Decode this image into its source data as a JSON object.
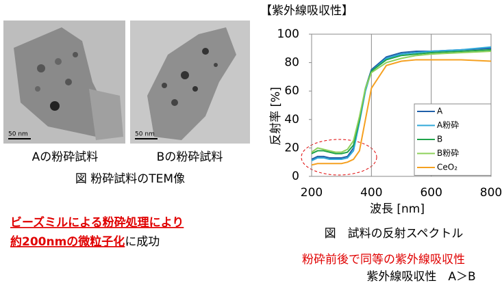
{
  "images": [
    {
      "scale": "50 nm",
      "label": "Aの粉砕試料"
    },
    {
      "scale": "50 nm",
      "label": "Bの粉砕試料"
    }
  ],
  "images_caption": "図 粉砕試料のTEM像",
  "highlight": {
    "line1": "ビーズミルによる粉砕処理により",
    "line2_red": "約200nmの微粒子化",
    "line2_rest": "に成功"
  },
  "conclusions": [
    "粉砕前後で同等の紫外線吸収性",
    "紫外線吸収性　A＞B"
  ],
  "chart_data": {
    "type": "line",
    "title": "【紫外線吸収性】",
    "caption": "図　試料の反射スペクトル",
    "x_label": "波長 [nm]",
    "y_label": "反射率 [%]",
    "x": [
      200,
      220,
      240,
      260,
      280,
      300,
      320,
      340,
      360,
      380,
      400,
      450,
      500,
      550,
      600,
      700,
      800
    ],
    "series": [
      {
        "name": "A",
        "color": "#1f5fa8",
        "values": [
          12,
          14,
          14,
          13,
          13,
          13,
          14,
          20,
          40,
          62,
          75,
          84,
          87,
          88,
          88,
          89,
          90
        ]
      },
      {
        "name": "A粉砕",
        "color": "#2fa8d8",
        "values": [
          11,
          13,
          13,
          12,
          12,
          12,
          13,
          18,
          38,
          60,
          74,
          83,
          86,
          87,
          88,
          89,
          91
        ]
      },
      {
        "name": "B",
        "color": "#1ea34a",
        "values": [
          16,
          18,
          18,
          17,
          16,
          16,
          17,
          22,
          40,
          62,
          74,
          82,
          85,
          86,
          87,
          88,
          89
        ]
      },
      {
        "name": "B粉砕",
        "color": "#8cd05a",
        "values": [
          17,
          20,
          19,
          18,
          17,
          17,
          19,
          25,
          42,
          62,
          73,
          80,
          83,
          85,
          86,
          87,
          88
        ]
      },
      {
        "name": "CeO₂",
        "color": "#f5a020",
        "values": [
          8,
          9,
          9,
          9,
          9,
          9,
          10,
          12,
          18,
          40,
          62,
          78,
          81,
          82,
          82,
          82,
          81
        ]
      }
    ],
    "xlim": [
      200,
      800
    ],
    "ylim": [
      0,
      100
    ],
    "xticks": [
      200,
      400,
      600,
      800
    ],
    "yticks": [
      0,
      20,
      40,
      60,
      80,
      100
    ],
    "grid": "x",
    "legend": "lower right"
  }
}
